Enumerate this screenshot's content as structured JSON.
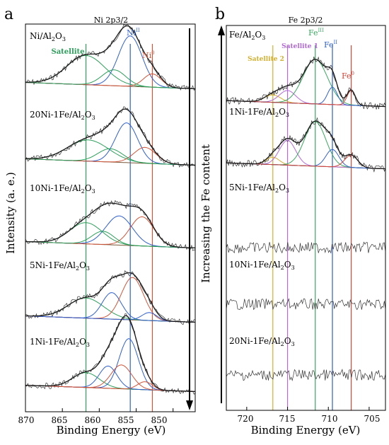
{
  "panel_a": {
    "letter": "a",
    "title": "Ni 2p3/2",
    "ylabel": "Intensity (a. e.)",
    "xlabel": "Binding Energy (eV)",
    "xticks": [
      "870",
      "865",
      "860",
      "855",
      "850"
    ],
    "arrow_label": "Increasing the Fe content",
    "peak_labels": {
      "satellite": "Satellite",
      "ni2": "Ni",
      "ni2_sup": "II",
      "ni0": "Ni",
      "ni0_sup": "0"
    },
    "samples": [
      {
        "prefix": "Ni/Al",
        "mid": "O",
        "suffix": ""
      },
      {
        "prefix": "20Ni-1Fe/Al",
        "mid": "O",
        "suffix": ""
      },
      {
        "prefix": "10Ni-1Fe/Al",
        "mid": "O",
        "suffix": ""
      },
      {
        "prefix": "5Ni-1Fe/Al",
        "mid": "O",
        "suffix": ""
      },
      {
        "prefix": "1Ni-1Fe/Al",
        "mid": "O",
        "suffix": ""
      }
    ]
  },
  "panel_b": {
    "letter": "b",
    "title": "Fe 2p3/2",
    "xlabel": "Binding Energy (eV)",
    "xticks": [
      "720",
      "715",
      "710",
      "705"
    ],
    "peak_labels": {
      "sat2": "Satellite 2",
      "sat1": "Satellite 1",
      "fe3": "Fe",
      "fe3_sup": "III",
      "fe2": "Fe",
      "fe2_sup": "II",
      "fe0": "Fe",
      "fe0_sup": "0"
    },
    "samples": [
      {
        "prefix": "Fe/Al",
        "mid": "O"
      },
      {
        "prefix": "1Ni-1Fe/Al",
        "mid": "O"
      },
      {
        "prefix": "5Ni-1Fe/Al",
        "mid": "O"
      },
      {
        "prefix": "10Ni-1Fe/Al",
        "mid": "O"
      },
      {
        "prefix": "20Ni-1Fe/Al",
        "mid": "O"
      }
    ]
  },
  "colors": {
    "satellite": "#2ca05a",
    "ni2": "#2f5fd0",
    "ni0": "#d0553a",
    "sat2": "#d4b030",
    "sat1": "#b36ad8",
    "fe3": "#3aa860",
    "fe2": "#2f5fd0",
    "fe0": "#d0453a",
    "envelope": "#1a1a1a",
    "raw": "#333333",
    "background": "#7a5a3a"
  },
  "chart_data": [
    {
      "type": "line",
      "panel": "a",
      "title": "Ni 2p3/2",
      "xlabel": "Binding Energy (eV)",
      "ylabel": "Intensity (a. e.)",
      "xlim": [
        870,
        847
      ],
      "xticks": [
        870,
        865,
        860,
        855,
        850
      ],
      "grid": false,
      "reference_lines": [
        {
          "name": "Satellite",
          "x": 861.8
        },
        {
          "name": "NiII",
          "x": 855.8
        },
        {
          "name": "Ni0",
          "x": 852.8
        }
      ],
      "series": [
        {
          "name": "Ni/Al2O3",
          "components": [
            {
              "center": 861.8,
              "height": 0.55,
              "width": 2.6,
              "color": "satellite"
            },
            {
              "center": 855.8,
              "height": 0.95,
              "width": 1.6,
              "color": "ni2"
            },
            {
              "center": 852.8,
              "height": 0.25,
              "width": 1.2,
              "color": "ni0"
            },
            {
              "center": 858.0,
              "height": 0.3,
              "width": 1.6,
              "color": "satellite"
            }
          ]
        },
        {
          "name": "20Ni-1Fe/Al2O3",
          "components": [
            {
              "center": 861.5,
              "height": 0.4,
              "width": 2.8,
              "color": "satellite"
            },
            {
              "center": 856.3,
              "height": 0.75,
              "width": 1.5,
              "color": "ni2"
            },
            {
              "center": 853.8,
              "height": 0.3,
              "width": 1.5,
              "color": "ni0"
            },
            {
              "center": 858.5,
              "height": 0.25,
              "width": 1.7,
              "color": "satellite"
            }
          ]
        },
        {
          "name": "10Ni-1Fe/Al2O3",
          "components": [
            {
              "center": 861.8,
              "height": 0.4,
              "width": 2.2,
              "color": "satellite"
            },
            {
              "center": 857.3,
              "height": 0.55,
              "width": 1.8,
              "color": "ni2"
            },
            {
              "center": 854.2,
              "height": 0.55,
              "width": 1.6,
              "color": "ni0"
            },
            {
              "center": 859.5,
              "height": 0.25,
              "width": 1.5,
              "color": "satellite"
            }
          ]
        },
        {
          "name": "5Ni-1Fe/Al2O3",
          "components": [
            {
              "center": 861.8,
              "height": 0.38,
              "width": 2.4,
              "color": "satellite"
            },
            {
              "center": 858.3,
              "height": 0.5,
              "width": 1.3,
              "color": "ni2"
            },
            {
              "center": 855.5,
              "height": 0.8,
              "width": 1.5,
              "color": "ni0"
            },
            {
              "center": 853.2,
              "height": 0.15,
              "width": 1.0,
              "color": "ni2"
            }
          ]
        },
        {
          "name": "1Ni-1Fe/Al2O3",
          "components": [
            {
              "center": 861.8,
              "height": 0.28,
              "width": 1.8,
              "color": "satellite"
            },
            {
              "center": 858.8,
              "height": 0.42,
              "width": 1.2,
              "color": "ni2"
            },
            {
              "center": 856.0,
              "height": 0.95,
              "width": 1.3,
              "color": "ni2"
            },
            {
              "center": 857.0,
              "height": 0.45,
              "width": 1.4,
              "color": "ni0"
            },
            {
              "center": 853.8,
              "height": 0.15,
              "width": 1.0,
              "color": "ni0"
            }
          ]
        }
      ]
    },
    {
      "type": "line",
      "panel": "b",
      "title": "Fe 2p3/2",
      "xlabel": "Binding Energy (eV)",
      "xlim": [
        722.5,
        703
      ],
      "xticks": [
        720,
        715,
        710,
        705
      ],
      "grid": false,
      "reference_lines": [
        {
          "name": "Satellite 2",
          "x": 716.8
        },
        {
          "name": "Satellite 1",
          "x": 715.0
        },
        {
          "name": "FeIII",
          "x": 711.6
        },
        {
          "name": "FeII",
          "x": 709.5
        },
        {
          "name": "Fe0",
          "x": 707.2
        }
      ],
      "series": [
        {
          "name": "Fe/Al2O3",
          "components": [
            {
              "center": 716.8,
              "height": 0.15,
              "width": 1.0,
              "color": "sat2"
            },
            {
              "center": 715.0,
              "height": 0.25,
              "width": 1.0,
              "color": "sat1"
            },
            {
              "center": 711.6,
              "height": 0.9,
              "width": 1.5,
              "color": "fe3"
            },
            {
              "center": 709.5,
              "height": 0.35,
              "width": 0.6,
              "color": "fe2"
            },
            {
              "center": 707.2,
              "height": 0.3,
              "width": 0.5,
              "color": "fe0"
            }
          ]
        },
        {
          "name": "1Ni-1Fe/Al2O3",
          "components": [
            {
              "center": 716.8,
              "height": 0.15,
              "width": 0.8,
              "color": "sat2"
            },
            {
              "center": 715.0,
              "height": 0.5,
              "width": 1.0,
              "color": "sat1"
            },
            {
              "center": 711.6,
              "height": 0.9,
              "width": 1.3,
              "color": "fe3"
            },
            {
              "center": 709.5,
              "height": 0.35,
              "width": 0.8,
              "color": "fe2"
            },
            {
              "center": 707.2,
              "height": 0.25,
              "width": 0.8,
              "color": "fe0"
            }
          ]
        },
        {
          "name": "5Ni-1Fe/Al2O3",
          "components": []
        },
        {
          "name": "10Ni-1Fe/Al2O3",
          "components": []
        },
        {
          "name": "20Ni-1Fe/Al2O3",
          "components": []
        }
      ]
    }
  ]
}
